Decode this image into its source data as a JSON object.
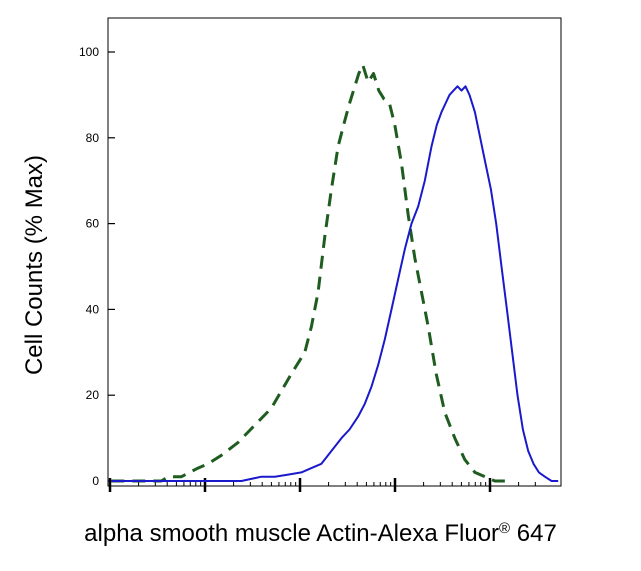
{
  "chart_data": {
    "type": "line",
    "title": "",
    "ylabel": "Cell Counts (% Max)",
    "xlabel_main": "alpha smooth muscle Actin-Alexa Fluor",
    "xlabel_sup": "®",
    "xlabel_end": " 647",
    "x_scale": "log",
    "x_range_decades": [
      0,
      4.5
    ],
    "ylim": [
      0,
      100
    ],
    "yticks": [
      0,
      20,
      40,
      60,
      80,
      100
    ],
    "grid": false,
    "series": [
      {
        "style": "dashed",
        "color": "#1f5c1f",
        "points": [
          [
            0.05,
            0
          ],
          [
            0.8,
            0
          ],
          [
            0.9,
            1
          ],
          [
            1.1,
            1
          ],
          [
            1.35,
            3
          ],
          [
            1.5,
            4
          ],
          [
            1.7,
            6
          ],
          [
            1.95,
            9
          ],
          [
            2.2,
            13
          ],
          [
            2.45,
            17
          ],
          [
            2.75,
            25
          ],
          [
            2.95,
            30
          ],
          [
            3.05,
            36
          ],
          [
            3.15,
            44
          ],
          [
            3.25,
            57
          ],
          [
            3.35,
            68
          ],
          [
            3.45,
            78
          ],
          [
            3.55,
            84
          ],
          [
            3.62,
            88
          ],
          [
            3.7,
            92
          ],
          [
            3.76,
            95
          ],
          [
            3.82,
            97
          ],
          [
            3.9,
            93
          ],
          [
            3.98,
            95
          ],
          [
            4.06,
            91
          ],
          [
            4.14,
            89
          ],
          [
            4.22,
            88
          ],
          [
            4.3,
            83
          ],
          [
            4.4,
            74
          ],
          [
            4.5,
            62
          ],
          [
            4.6,
            52
          ],
          [
            4.7,
            44
          ],
          [
            4.8,
            36
          ],
          [
            4.92,
            25
          ],
          [
            5.05,
            16
          ],
          [
            5.2,
            10
          ],
          [
            5.35,
            5
          ],
          [
            5.5,
            2
          ],
          [
            5.65,
            1
          ],
          [
            5.8,
            0
          ],
          [
            6.0,
            0
          ]
        ]
      },
      {
        "style": "solid",
        "color": "#1a1acc",
        "points": [
          [
            0.05,
            0
          ],
          [
            2.0,
            0
          ],
          [
            2.3,
            1
          ],
          [
            2.5,
            1
          ],
          [
            2.7,
            1.5
          ],
          [
            2.9,
            2
          ],
          [
            3.05,
            3
          ],
          [
            3.2,
            4
          ],
          [
            3.35,
            7
          ],
          [
            3.5,
            10
          ],
          [
            3.62,
            12
          ],
          [
            3.75,
            15
          ],
          [
            3.85,
            18
          ],
          [
            3.95,
            22
          ],
          [
            4.05,
            27
          ],
          [
            4.15,
            33
          ],
          [
            4.25,
            40
          ],
          [
            4.35,
            47
          ],
          [
            4.45,
            54
          ],
          [
            4.55,
            60
          ],
          [
            4.65,
            64
          ],
          [
            4.75,
            70
          ],
          [
            4.85,
            78
          ],
          [
            4.93,
            83
          ],
          [
            5.0,
            86
          ],
          [
            5.06,
            88
          ],
          [
            5.12,
            90
          ],
          [
            5.18,
            91
          ],
          [
            5.24,
            92
          ],
          [
            5.3,
            91
          ],
          [
            5.36,
            92
          ],
          [
            5.42,
            90
          ],
          [
            5.5,
            86
          ],
          [
            5.58,
            80
          ],
          [
            5.66,
            74
          ],
          [
            5.74,
            68
          ],
          [
            5.82,
            60
          ],
          [
            5.9,
            50
          ],
          [
            5.98,
            40
          ],
          [
            6.06,
            30
          ],
          [
            6.14,
            20
          ],
          [
            6.22,
            12
          ],
          [
            6.3,
            7
          ],
          [
            6.38,
            4
          ],
          [
            6.46,
            2
          ],
          [
            6.55,
            1
          ],
          [
            6.65,
            0
          ],
          [
            6.75,
            0
          ]
        ]
      }
    ]
  },
  "colors": {
    "axis": "#000000",
    "background": "#ffffff"
  }
}
